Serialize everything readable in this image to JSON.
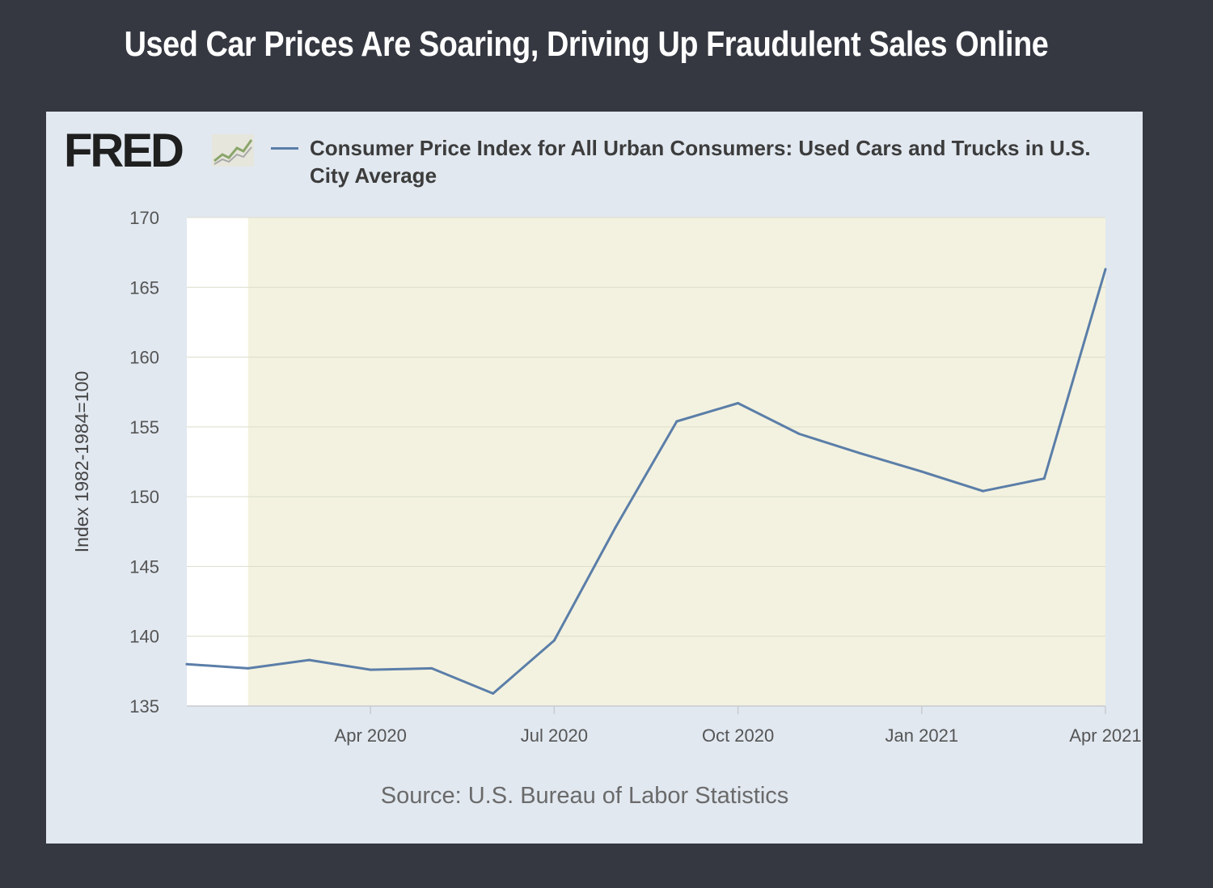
{
  "headline": "Used Car Prices Are Soaring, Driving Up Fraudulent Sales Online",
  "brand": {
    "logo_text": "FRED",
    "logo_icon": "chart-line-icon"
  },
  "source_text": "Source: U.S. Bureau of Labor Statistics",
  "colors": {
    "page_background": "#353841",
    "panel_background": "#e1e8f0",
    "plot_background": "#f3f2e0",
    "recession_gap": "#ffffff",
    "series_line": "#5b7ea8",
    "gridline": "#dcdccc"
  },
  "chart_data": {
    "type": "line",
    "title": "",
    "legend": [
      "Consumer Price Index for All Urban Consumers: Used Cars and Trucks in U.S. City Average"
    ],
    "legend_position": "top",
    "xlabel": "",
    "ylabel": "Index 1982-1984=100",
    "ylim": [
      135,
      170
    ],
    "yticks": [
      135,
      140,
      145,
      150,
      155,
      160,
      165,
      170
    ],
    "xticks": [
      "Apr 2020",
      "Jul 2020",
      "Oct 2020",
      "Jan 2021",
      "Apr 2021"
    ],
    "grid": true,
    "shaded_region": {
      "from": "2020-02",
      "to": "2021-04"
    },
    "series": [
      {
        "name": "Consumer Price Index for All Urban Consumers: Used Cars and Trucks in U.S. City Average",
        "x": [
          "2020-01",
          "2020-02",
          "2020-03",
          "2020-04",
          "2020-05",
          "2020-06",
          "2020-07",
          "2020-08",
          "2020-09",
          "2020-10",
          "2020-11",
          "2020-12",
          "2021-01",
          "2021-02",
          "2021-03",
          "2021-04"
        ],
        "values": [
          138.0,
          137.7,
          138.3,
          137.6,
          137.7,
          135.9,
          139.7,
          147.8,
          155.4,
          156.7,
          154.5,
          153.1,
          151.8,
          150.4,
          151.3,
          166.3
        ]
      }
    ]
  }
}
